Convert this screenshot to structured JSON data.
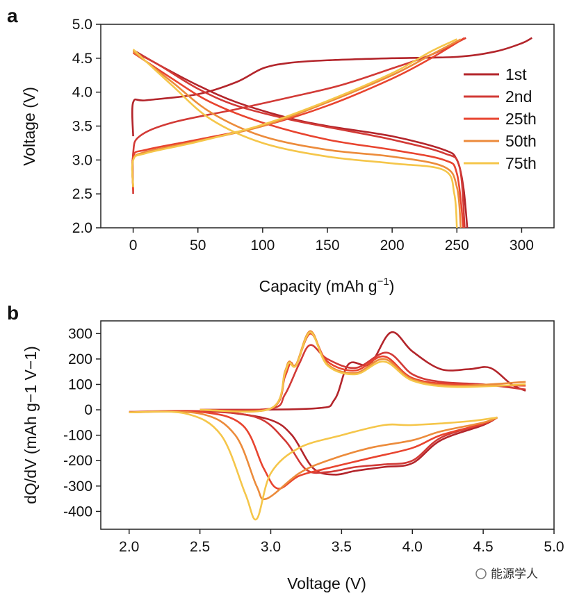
{
  "watermark": "能源学人",
  "chart_data": [
    {
      "panel": "a",
      "type": "line",
      "xlabel": "Capacity (mAh g",
      "xlabel_sup": "−1",
      "xlabel_end": ")",
      "ylabel": "Voltage (V)",
      "xlim": [
        -25,
        325
      ],
      "ylim": [
        2.0,
        5.0
      ],
      "xticks": [
        0,
        50,
        100,
        150,
        200,
        250,
        300
      ],
      "yticks": [
        "2.0",
        "2.5",
        "3.0",
        "3.5",
        "4.0",
        "4.5",
        "5.0"
      ],
      "legend": "right",
      "grid": false,
      "series": [
        {
          "name": "1st",
          "color": "#b3252b",
          "charge": [
            [
              0,
              3.35
            ],
            [
              0,
              3.85
            ],
            [
              10,
              3.88
            ],
            [
              50,
              3.97
            ],
            [
              80,
              4.15
            ],
            [
              100,
              4.35
            ],
            [
              120,
              4.43
            ],
            [
              150,
              4.47
            ],
            [
              200,
              4.5
            ],
            [
              250,
              4.52
            ],
            [
              280,
              4.6
            ],
            [
              300,
              4.72
            ],
            [
              308,
              4.8
            ]
          ],
          "discharge": [
            [
              0,
              4.62
            ],
            [
              20,
              4.4
            ],
            [
              50,
              4.1
            ],
            [
              80,
              3.85
            ],
            [
              120,
              3.62
            ],
            [
              150,
              3.5
            ],
            [
              200,
              3.35
            ],
            [
              240,
              3.15
            ],
            [
              250,
              3.0
            ],
            [
              255,
              2.6
            ],
            [
              258,
              2.0
            ]
          ]
        },
        {
          "name": "2nd",
          "color": "#d23a36",
          "charge": [
            [
              0,
              2.5
            ],
            [
              0,
              3.1
            ],
            [
              5,
              3.35
            ],
            [
              30,
              3.55
            ],
            [
              80,
              3.75
            ],
            [
              120,
              3.92
            ],
            [
              160,
              4.1
            ],
            [
              200,
              4.35
            ],
            [
              230,
              4.55
            ],
            [
              257,
              4.8
            ]
          ],
          "discharge": [
            [
              0,
              4.6
            ],
            [
              20,
              4.4
            ],
            [
              50,
              4.05
            ],
            [
              80,
              3.8
            ],
            [
              120,
              3.6
            ],
            [
              160,
              3.45
            ],
            [
              200,
              3.3
            ],
            [
              240,
              3.1
            ],
            [
              252,
              2.9
            ],
            [
              256,
              2.0
            ]
          ]
        },
        {
          "name": "25th",
          "color": "#e8442f",
          "charge": [
            [
              0,
              2.55
            ],
            [
              0,
              3.05
            ],
            [
              10,
              3.15
            ],
            [
              50,
              3.3
            ],
            [
              100,
              3.5
            ],
            [
              150,
              3.8
            ],
            [
              200,
              4.2
            ],
            [
              230,
              4.5
            ],
            [
              256,
              4.8
            ]
          ],
          "discharge": [
            [
              0,
              4.58
            ],
            [
              30,
              4.2
            ],
            [
              60,
              3.85
            ],
            [
              100,
              3.55
            ],
            [
              150,
              3.3
            ],
            [
              200,
              3.15
            ],
            [
              240,
              3.0
            ],
            [
              250,
              2.8
            ],
            [
              255,
              2.0
            ]
          ]
        },
        {
          "name": "50th",
          "color": "#ec8b3b",
          "charge": [
            [
              0,
              2.6
            ],
            [
              0,
              3.0
            ],
            [
              10,
              3.12
            ],
            [
              50,
              3.28
            ],
            [
              100,
              3.5
            ],
            [
              150,
              3.85
            ],
            [
              200,
              4.25
            ],
            [
              230,
              4.55
            ],
            [
              253,
              4.78
            ]
          ],
          "discharge": [
            [
              0,
              4.6
            ],
            [
              30,
              4.15
            ],
            [
              60,
              3.7
            ],
            [
              100,
              3.35
            ],
            [
              150,
              3.15
            ],
            [
              200,
              3.05
            ],
            [
              240,
              2.9
            ],
            [
              250,
              2.6
            ],
            [
              253,
              2.0
            ]
          ]
        },
        {
          "name": "75th",
          "color": "#f5c64a",
          "charge": [
            [
              0,
              2.6
            ],
            [
              0,
              3.0
            ],
            [
              10,
              3.1
            ],
            [
              50,
              3.27
            ],
            [
              100,
              3.52
            ],
            [
              150,
              3.87
            ],
            [
              200,
              4.28
            ],
            [
              230,
              4.6
            ],
            [
              250,
              4.78
            ]
          ],
          "discharge": [
            [
              0,
              4.63
            ],
            [
              30,
              4.1
            ],
            [
              60,
              3.6
            ],
            [
              100,
              3.25
            ],
            [
              150,
              3.05
            ],
            [
              200,
              2.95
            ],
            [
              240,
              2.85
            ],
            [
              248,
              2.5
            ],
            [
              250,
              2.0
            ]
          ]
        }
      ]
    },
    {
      "panel": "b",
      "type": "line",
      "xlabel": "Voltage (V)",
      "ylabel": "dQ/dV (mAh g−1 V−1)",
      "xlim": [
        1.8,
        5.0
      ],
      "ylim": [
        -470,
        350
      ],
      "xticks": [
        "2.0",
        "2.5",
        "3.0",
        "3.5",
        "4.0",
        "4.5",
        "5.0"
      ],
      "yticks": [
        -400,
        -300,
        -200,
        -100,
        0,
        100,
        200,
        300
      ],
      "grid": false,
      "series": [
        {
          "name": "1st",
          "color": "#b3252b",
          "charge": [
            [
              2.5,
              0
            ],
            [
              3.3,
              5
            ],
            [
              3.45,
              40
            ],
            [
              3.55,
              180
            ],
            [
              3.7,
              180
            ],
            [
              3.85,
              305
            ],
            [
              4.0,
              230
            ],
            [
              4.2,
              160
            ],
            [
              4.4,
              160
            ],
            [
              4.55,
              165
            ],
            [
              4.7,
              100
            ],
            [
              4.8,
              75
            ]
          ],
          "discharge": [
            [
              4.6,
              -30
            ],
            [
              4.5,
              -60
            ],
            [
              4.2,
              -120
            ],
            [
              4.0,
              -210
            ],
            [
              3.8,
              -225
            ],
            [
              3.6,
              -240
            ],
            [
              3.45,
              -255
            ],
            [
              3.3,
              -230
            ],
            [
              3.15,
              -100
            ],
            [
              3.0,
              -40
            ],
            [
              2.7,
              -10
            ],
            [
              2.5,
              -2
            ]
          ]
        },
        {
          "name": "2nd",
          "color": "#d23a36",
          "charge": [
            [
              2.5,
              0
            ],
            [
              3.0,
              5
            ],
            [
              3.1,
              60
            ],
            [
              3.2,
              180
            ],
            [
              3.28,
              255
            ],
            [
              3.4,
              200
            ],
            [
              3.6,
              165
            ],
            [
              3.82,
              225
            ],
            [
              4.0,
              140
            ],
            [
              4.2,
              110
            ],
            [
              4.5,
              100
            ],
            [
              4.8,
              80
            ]
          ],
          "discharge": [
            [
              4.6,
              -30
            ],
            [
              4.5,
              -55
            ],
            [
              4.2,
              -110
            ],
            [
              4.0,
              -200
            ],
            [
              3.8,
              -215
            ],
            [
              3.6,
              -225
            ],
            [
              3.4,
              -245
            ],
            [
              3.25,
              -235
            ],
            [
              3.1,
              -120
            ],
            [
              2.9,
              -30
            ],
            [
              2.5,
              -5
            ],
            [
              2.0,
              -8
            ]
          ]
        },
        {
          "name": "25th",
          "color": "#e8442f",
          "charge": [
            [
              2.5,
              0
            ],
            [
              3.0,
              5
            ],
            [
              3.1,
              130
            ],
            [
              3.14,
              185
            ],
            [
              3.18,
              175
            ],
            [
              3.28,
              300
            ],
            [
              3.4,
              190
            ],
            [
              3.6,
              155
            ],
            [
              3.8,
              210
            ],
            [
              4.0,
              125
            ],
            [
              4.3,
              100
            ],
            [
              4.8,
              95
            ]
          ],
          "discharge": [
            [
              4.6,
              -30
            ],
            [
              4.5,
              -55
            ],
            [
              4.2,
              -100
            ],
            [
              4.0,
              -150
            ],
            [
              3.7,
              -190
            ],
            [
              3.4,
              -230
            ],
            [
              3.2,
              -260
            ],
            [
              3.05,
              -310
            ],
            [
              2.95,
              -230
            ],
            [
              2.8,
              -60
            ],
            [
              2.5,
              -8
            ],
            [
              2.0,
              -10
            ]
          ]
        },
        {
          "name": "50th",
          "color": "#ec8b3b",
          "charge": [
            [
              2.5,
              0
            ],
            [
              3.0,
              5
            ],
            [
              3.1,
              150
            ],
            [
              3.13,
              190
            ],
            [
              3.18,
              180
            ],
            [
              3.28,
              310
            ],
            [
              3.4,
              180
            ],
            [
              3.6,
              145
            ],
            [
              3.8,
              200
            ],
            [
              4.0,
              120
            ],
            [
              4.3,
              95
            ],
            [
              4.8,
              110
            ]
          ],
          "discharge": [
            [
              4.6,
              -30
            ],
            [
              4.5,
              -50
            ],
            [
              4.2,
              -85
            ],
            [
              4.0,
              -120
            ],
            [
              3.7,
              -150
            ],
            [
              3.4,
              -200
            ],
            [
              3.2,
              -250
            ],
            [
              2.97,
              -350
            ],
            [
              2.9,
              -300
            ],
            [
              2.75,
              -100
            ],
            [
              2.5,
              -15
            ],
            [
              2.0,
              -10
            ]
          ]
        },
        {
          "name": "75th",
          "color": "#f5c64a",
          "charge": [
            [
              2.5,
              0
            ],
            [
              3.0,
              5
            ],
            [
              3.1,
              145
            ],
            [
              3.13,
              185
            ],
            [
              3.18,
              175
            ],
            [
              3.28,
              305
            ],
            [
              3.4,
              175
            ],
            [
              3.6,
              140
            ],
            [
              3.8,
              190
            ],
            [
              4.0,
              115
            ],
            [
              4.3,
              90
            ],
            [
              4.8,
              100
            ]
          ],
          "discharge": [
            [
              4.6,
              -30
            ],
            [
              4.4,
              -45
            ],
            [
              4.0,
              -60
            ],
            [
              3.8,
              -60
            ],
            [
              3.5,
              -100
            ],
            [
              3.2,
              -150
            ],
            [
              3.0,
              -250
            ],
            [
              2.9,
              -430
            ],
            [
              2.82,
              -330
            ],
            [
              2.65,
              -100
            ],
            [
              2.4,
              -15
            ],
            [
              2.0,
              -10
            ]
          ]
        }
      ]
    }
  ]
}
